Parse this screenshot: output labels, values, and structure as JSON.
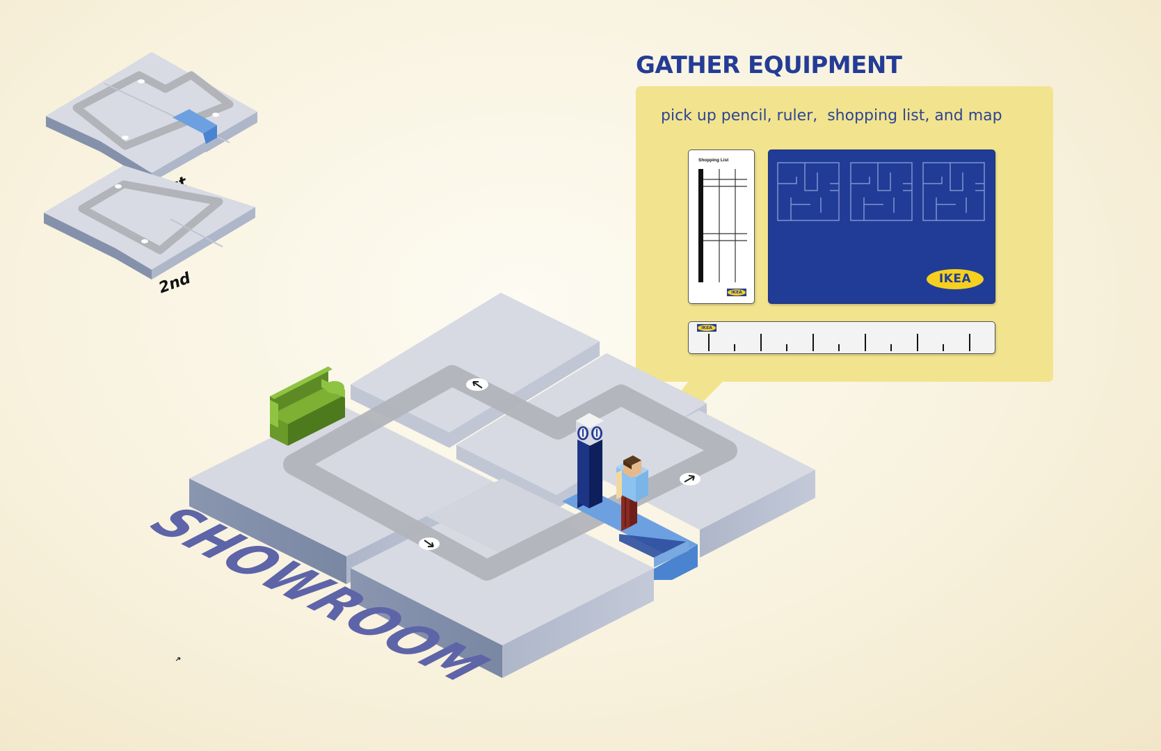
{
  "floor_labels": {
    "first": "1st",
    "second": "2nd"
  },
  "showroom_label": "SHOWROOM",
  "panel": {
    "title": "GATHER EQUIPMENT",
    "instruction": "pick up pencil, ruler,  shopping list, and map",
    "shopping_list_title": "Shopping List",
    "logo_text": "IKEA"
  },
  "arrows": {
    "top": "arrow-up-left-icon",
    "right": "arrow-up-right-icon",
    "bottom": "arrow-down-right-icon"
  },
  "colors": {
    "background": "#fbf6e4",
    "title_blue": "#243c95",
    "panel_yellow": "#f2e48e",
    "map_blue": "#213c97",
    "logo_yellow": "#f6d01f",
    "tile_top": "#d5d8e0",
    "tile_side": "#8591ab",
    "path": "#b2b4b9",
    "highlight_blue": "#5e93d6",
    "sofa_green": "#6a9a2a",
    "showroom_purple": "#5e64a8"
  }
}
